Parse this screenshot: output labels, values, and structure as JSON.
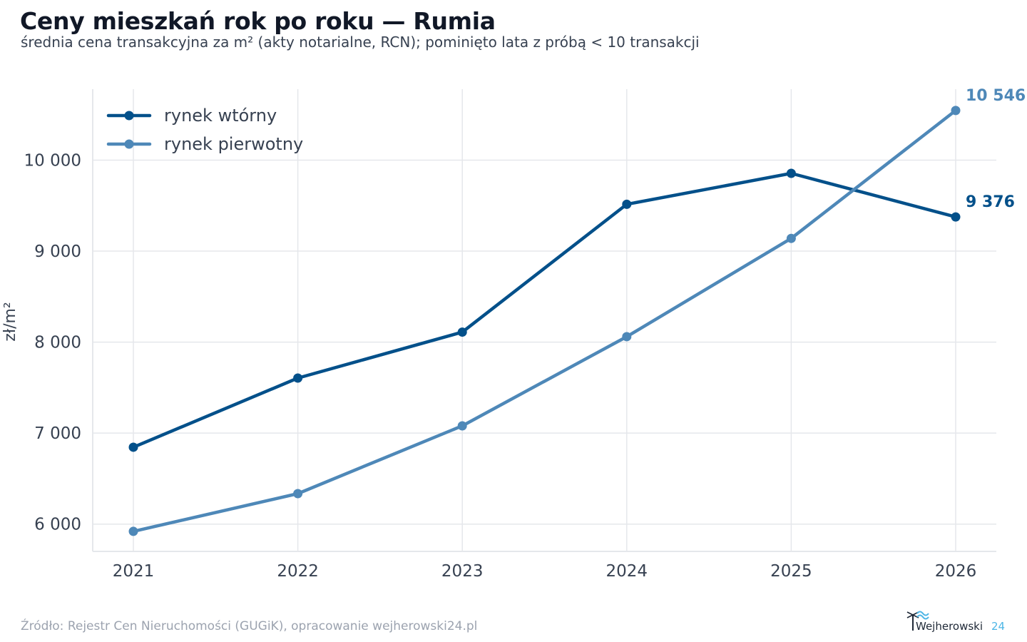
{
  "header": {
    "title": "Ceny mieszkań rok po roku — Rumia",
    "subtitle": "średnia cena transakcyjna za m² (akty notarialne, RCN); pominięto lata z próbą < 10 transakcji"
  },
  "footer": {
    "source": "Źródło: Rejestr Cen Nieruchomości (GUGiK), opracowanie wejherowski24.pl",
    "brand_name": "Wejherowski",
    "brand_number": "24"
  },
  "chart_data": {
    "type": "line",
    "x": [
      2021,
      2022,
      2023,
      2024,
      2025,
      2026
    ],
    "xlabel": "",
    "ylabel": "zł/m²",
    "ylim": [
      5700,
      10780
    ],
    "yticks": [
      6000,
      7000,
      8000,
      9000,
      10000
    ],
    "ytick_labels": [
      "6 000",
      "7 000",
      "8 000",
      "9 000",
      "10 000"
    ],
    "grid": true,
    "legend_position": "top-left",
    "series": [
      {
        "name": "rynek wtórny",
        "color": "#03508a",
        "values": [
          6845,
          7605,
          8110,
          9515,
          9855,
          9376
        ],
        "end_label": "9 376"
      },
      {
        "name": "rynek pierwotny",
        "color": "#4e88b8",
        "values": [
          5920,
          6335,
          7080,
          8060,
          9140,
          10546
        ],
        "end_label": "10 546"
      }
    ]
  }
}
